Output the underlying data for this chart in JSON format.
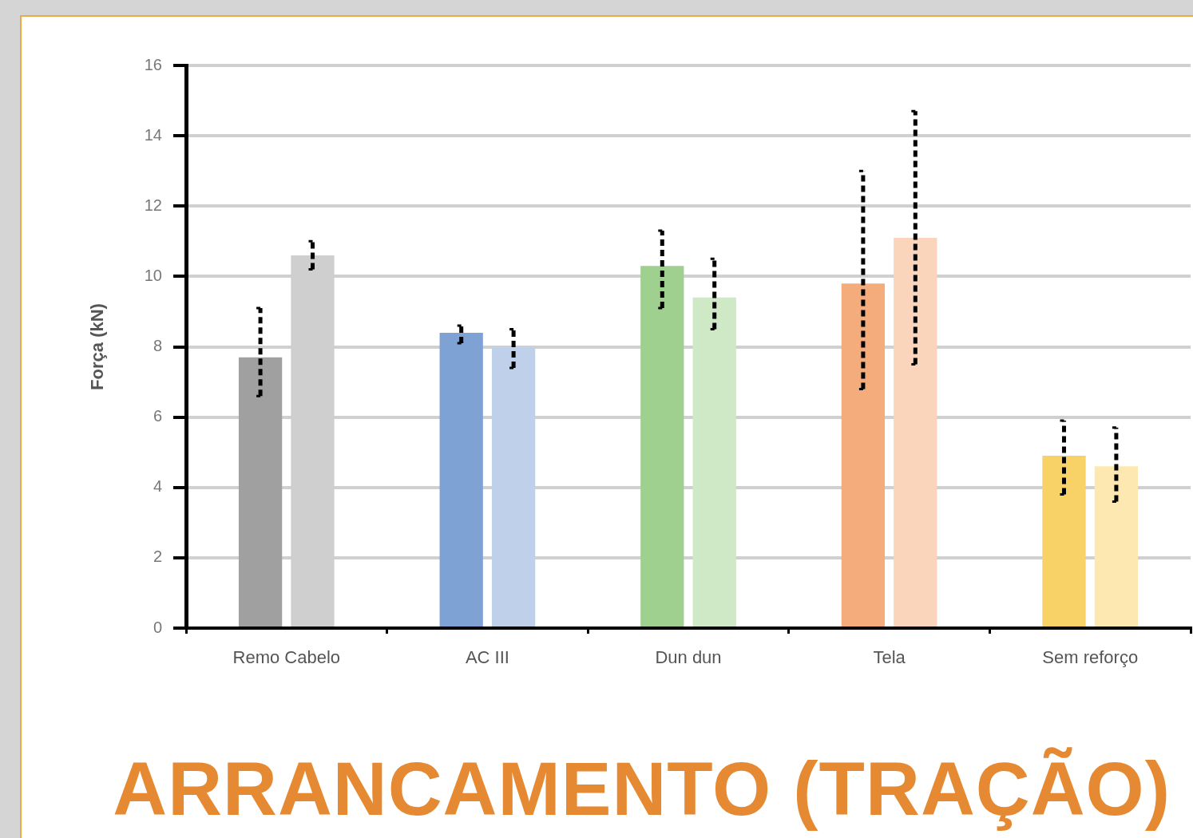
{
  "chart_data": {
    "type": "bar",
    "title": "ARRANCAMENTO (TRAÇÃO)",
    "ylabel": "Força (kN)",
    "categories": [
      "Remo Cabelo",
      "AC III",
      "Dun dun",
      "Tela",
      "Sem reforço"
    ],
    "series": [
      {
        "colors": [
          "#a0a0a0",
          "#7fa2d4",
          "#9fd08f",
          "#f5ac7c",
          "#f8d266"
        ],
        "values": [
          7.7,
          8.4,
          10.3,
          9.8,
          4.9
        ],
        "errors": [
          [
            6.6,
            9.1
          ],
          [
            8.1,
            8.6
          ],
          [
            9.1,
            11.3
          ],
          [
            6.8,
            13.0
          ],
          [
            3.8,
            5.9
          ]
        ]
      },
      {
        "colors": [
          "#cfcfcf",
          "#bfd1ea",
          "#cfe8c6",
          "#fad5bc",
          "#fce8b0"
        ],
        "values": [
          10.6,
          8.0,
          9.4,
          11.1,
          4.6
        ],
        "errors": [
          [
            10.2,
            11.0
          ],
          [
            7.4,
            8.5
          ],
          [
            8.5,
            10.5
          ],
          [
            7.5,
            14.7
          ],
          [
            3.6,
            5.7
          ]
        ]
      }
    ],
    "ylim": [
      0,
      16
    ],
    "yticks": [
      0,
      2,
      4,
      6,
      8,
      10,
      12,
      14,
      16
    ],
    "grid": "y",
    "legend": false
  }
}
